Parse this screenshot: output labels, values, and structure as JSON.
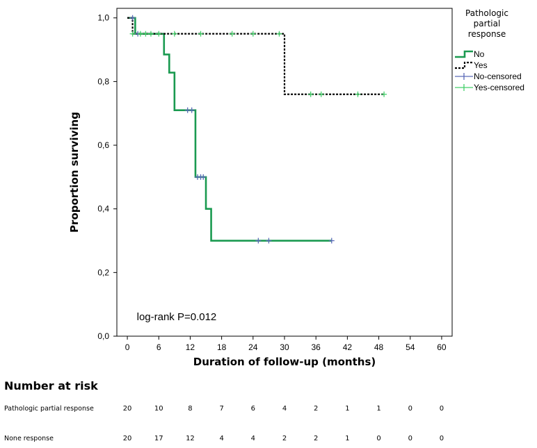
{
  "chart_data": {
    "type": "line",
    "subtype": "kaplan-meier",
    "title": "",
    "xlabel": "Duration of follow-up (months)",
    "ylabel": "Proportion surviving",
    "xlim": [
      -2,
      62
    ],
    "ylim": [
      0,
      1.03
    ],
    "x_ticks": [
      0,
      6,
      12,
      18,
      24,
      30,
      36,
      42,
      48,
      54,
      60
    ],
    "x_tick_labels": [
      "0",
      "6",
      "12",
      "18",
      "24",
      "30",
      "36",
      "42",
      "48",
      "54",
      "60"
    ],
    "y_ticks": [
      0.0,
      0.2,
      0.4,
      0.6,
      0.8,
      1.0
    ],
    "y_tick_labels": [
      "0,0",
      "0,2",
      "0,4",
      "0,6",
      "0,8",
      "1,0"
    ],
    "grid": false,
    "legend": {
      "title": "Pathologic partial response",
      "title_lines": [
        "Pathologic",
        "partial",
        "response"
      ],
      "placement": "outside-right",
      "entries": [
        {
          "label": "No",
          "style": "solid",
          "color": "#1a9a50"
        },
        {
          "label": "Yes",
          "style": "dotted",
          "color": "#000000"
        },
        {
          "label": "No-censored",
          "style": "censor",
          "color": "#5a6ab8"
        },
        {
          "label": "Yes-censored",
          "style": "censor",
          "color": "#44d06a"
        }
      ]
    },
    "series": [
      {
        "name": "No",
        "color": "#1a9a50",
        "dash": "none",
        "steps": [
          [
            0,
            1.0
          ],
          [
            1.5,
            0.95
          ],
          [
            7,
            0.885
          ],
          [
            8,
            0.828
          ],
          [
            9,
            0.71
          ],
          [
            13,
            0.5
          ],
          [
            15,
            0.4
          ],
          [
            16,
            0.3
          ],
          [
            39,
            0.3
          ]
        ],
        "censored": [
          [
            1,
            1.0
          ],
          [
            2,
            0.95
          ],
          [
            11.5,
            0.71
          ],
          [
            12.3,
            0.71
          ],
          [
            13.4,
            0.5
          ],
          [
            14,
            0.5
          ],
          [
            14.5,
            0.5
          ],
          [
            25,
            0.3
          ],
          [
            27,
            0.3
          ],
          [
            39,
            0.3
          ]
        ]
      },
      {
        "name": "Yes",
        "color": "#000000",
        "dash": "3,2",
        "steps": [
          [
            0,
            1.0
          ],
          [
            1,
            0.95
          ],
          [
            30,
            0.76
          ],
          [
            49,
            0.76
          ]
        ],
        "censored": [
          [
            1,
            0.95
          ],
          [
            2.5,
            0.95
          ],
          [
            3.5,
            0.95
          ],
          [
            4.5,
            0.95
          ],
          [
            6,
            0.95
          ],
          [
            9,
            0.95
          ],
          [
            14,
            0.95
          ],
          [
            20,
            0.95
          ],
          [
            24,
            0.95
          ],
          [
            29,
            0.95
          ],
          [
            35,
            0.76
          ],
          [
            37,
            0.76
          ],
          [
            44,
            0.76
          ],
          [
            49,
            0.76
          ]
        ]
      }
    ],
    "censor_color": "#44d06a",
    "annotation": "log-rank P=0.012"
  },
  "risk_table": {
    "title": "Number at risk",
    "rows": [
      {
        "label": "Pathologic partial response",
        "values": [
          "20",
          "10",
          "8",
          "7",
          "6",
          "4",
          "2",
          "1",
          "1",
          "0",
          "0"
        ]
      },
      {
        "label": "None response",
        "values": [
          "20",
          "17",
          "12",
          "4",
          "4",
          "2",
          "2",
          "1",
          "0",
          "0",
          "0"
        ]
      }
    ]
  }
}
